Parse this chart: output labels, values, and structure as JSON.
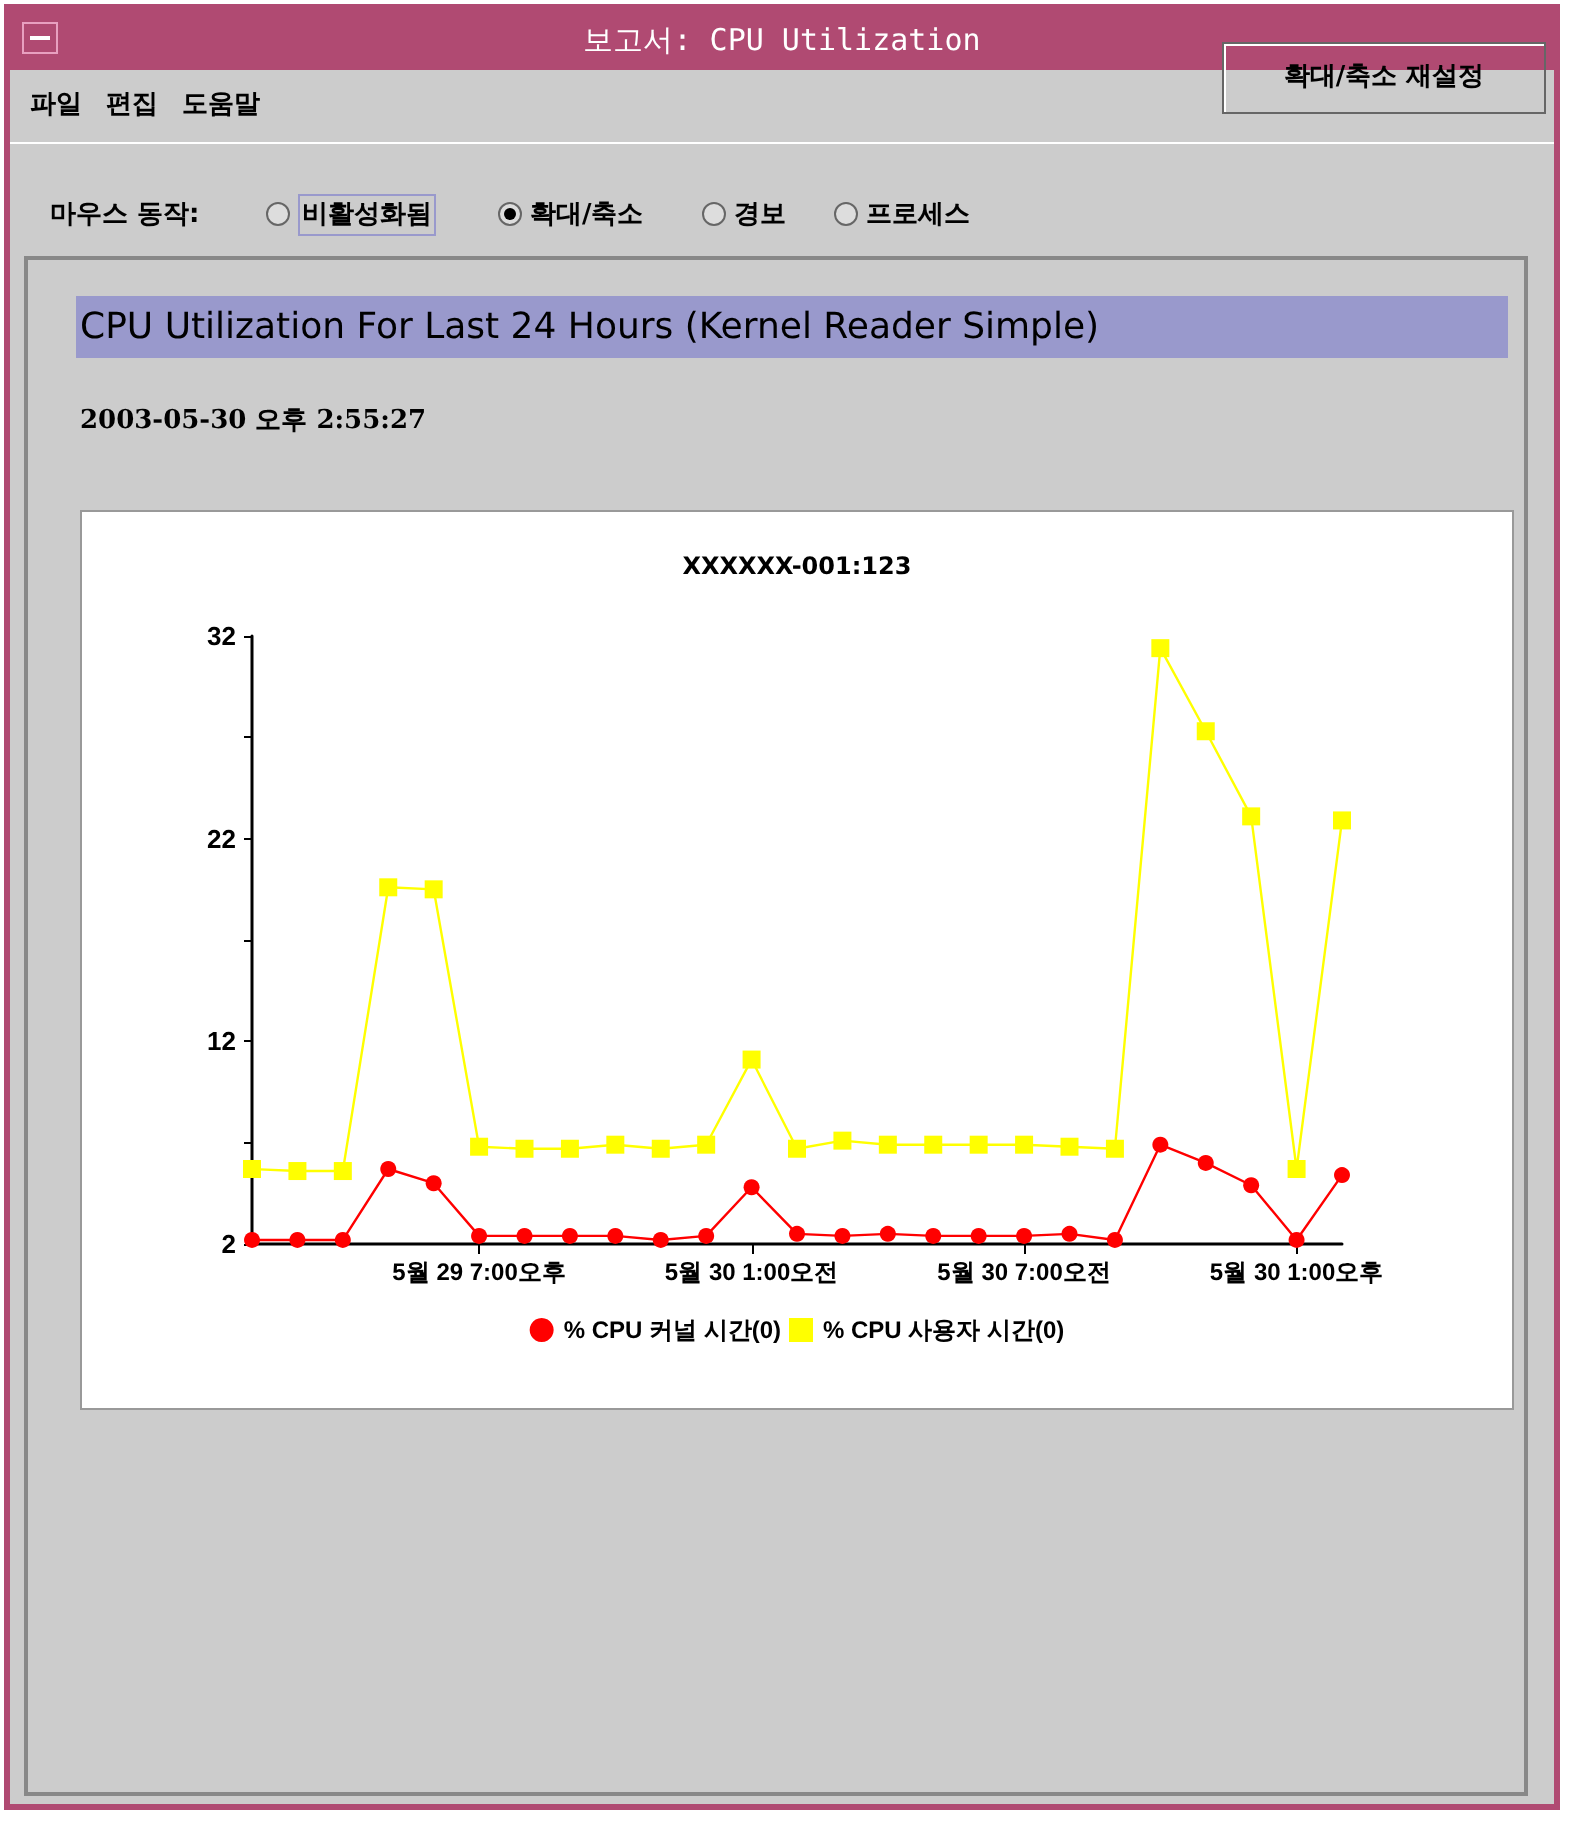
{
  "chart_data": {
    "type": "line",
    "title": "CPU Utilization For Last 24 Hours (Kernel Reader Simple)",
    "subtitle": "2003-05-30 오후 2:55:27",
    "annotations": [
      "보고서: CPU Utilization",
      "파일",
      "편집",
      "도움말",
      "마우스 동작:",
      "비활성화됨",
      "확대/축소",
      "경보",
      "프로세스",
      "확대/축소 재설정",
      "XXXXXX-001:123"
    ],
    "x": [
      "2003-05-29T14:00",
      "2003-05-29T15:00",
      "2003-05-29T16:00",
      "2003-05-29T17:00",
      "2003-05-29T18:00",
      "2003-05-29T19:00",
      "2003-05-29T20:00",
      "2003-05-29T21:00",
      "2003-05-29T22:00",
      "2003-05-29T23:00",
      "2003-05-30T00:00",
      "2003-05-30T01:00",
      "2003-05-30T02:00",
      "2003-05-30T03:00",
      "2003-05-30T04:00",
      "2003-05-30T05:00",
      "2003-05-30T06:00",
      "2003-05-30T07:00",
      "2003-05-30T08:00",
      "2003-05-30T09:00",
      "2003-05-30T10:00",
      "2003-05-30T11:00",
      "2003-05-30T12:00",
      "2003-05-30T13:00",
      "2003-05-30T14:00"
    ],
    "series": [
      {
        "name": "% CPU 커널 시간(0)",
        "color": "#ff0000",
        "marker": "circle",
        "values": [
          2.2,
          2.2,
          2.2,
          5.7,
          5.0,
          2.4,
          2.4,
          2.4,
          2.4,
          2.2,
          2.4,
          4.8,
          2.5,
          2.4,
          2.5,
          2.4,
          2.4,
          2.4,
          2.5,
          2.2,
          6.9,
          6.0,
          4.9,
          2.2,
          5.4
        ]
      },
      {
        "name": "% CPU 사용자 시간(0)",
        "color": "#ffff00",
        "marker": "square",
        "values": [
          5.7,
          5.6,
          5.6,
          19.6,
          19.5,
          6.8,
          6.7,
          6.7,
          6.9,
          6.7,
          6.9,
          11.1,
          6.7,
          7.1,
          6.9,
          6.9,
          6.9,
          6.9,
          6.8,
          6.7,
          31.4,
          27.3,
          23.1,
          5.7,
          22.9
        ]
      }
    ],
    "xlim": [
      "2003-05-29T14:00",
      "2003-05-30T14:00"
    ],
    "xticks": [
      {
        "value": "2003-05-29T19:00",
        "label": "5월 29 7:00오후"
      },
      {
        "value": "2003-05-30T01:00",
        "label": "5월 30 1:00오전"
      },
      {
        "value": "2003-05-30T07:00",
        "label": "5월 30 7:00오전"
      },
      {
        "value": "2003-05-30T13:00",
        "label": "5월 30 1:00오후"
      }
    ],
    "ylim": [
      2,
      32
    ],
    "yticks": [
      2,
      {
        "value": 7,
        "label": null
      },
      12,
      {
        "value": 17,
        "label": null
      },
      22,
      {
        "value": 27,
        "label": null
      },
      32
    ],
    "grid": false,
    "legend": "bottom",
    "line_style": "solid"
  }
}
